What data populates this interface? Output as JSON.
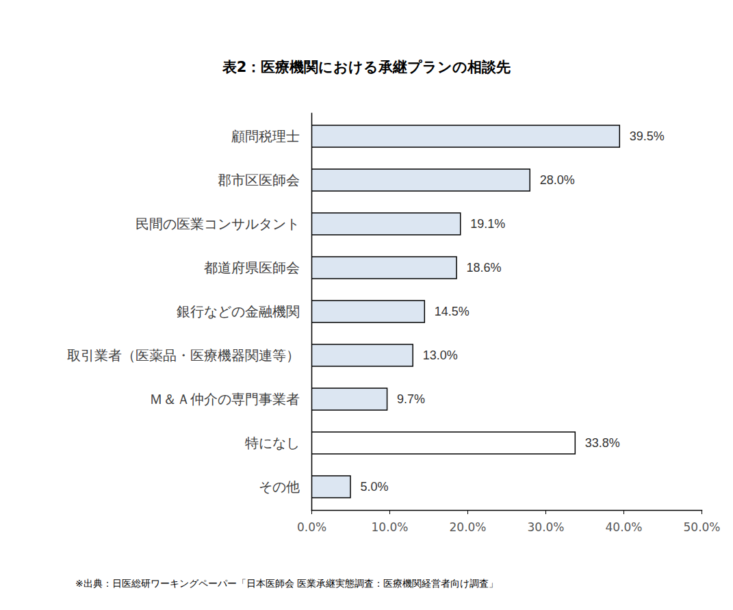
{
  "chart_data": {
    "type": "bar",
    "orientation": "horizontal",
    "title": "表2：医療機関における承継プランの相談先",
    "source": "※出典：日医総研ワーキングペーパー「日本医師会 医業承継実態調査：医療機関経営者向け調査」",
    "categories": [
      "顧問税理士",
      "郡市区医師会",
      "民間の医業コンサルタント",
      "都道府県医師会",
      "銀行などの金融機関",
      "取引業者（医薬品・医療機器関連等）",
      "Ｍ＆Ａ仲介の専門事業者",
      "特になし",
      "その他"
    ],
    "values": [
      39.5,
      28.0,
      19.1,
      18.6,
      14.5,
      13.0,
      9.7,
      33.8,
      5.0
    ],
    "value_labels": [
      "39.5%",
      "28.0%",
      "19.1%",
      "18.6%",
      "14.5%",
      "13.0%",
      "9.7%",
      "33.8%",
      "5.0%"
    ],
    "data_labels": true,
    "colors": [
      "#dce6f2",
      "#dce6f2",
      "#dce6f2",
      "#dce6f2",
      "#dce6f2",
      "#dce6f2",
      "#dce6f2",
      "#ffffff",
      "#dce6f2"
    ],
    "xlim": [
      0,
      50
    ],
    "xticks": [
      {
        "value": 0,
        "label": "0.0%"
      },
      {
        "value": 10,
        "label": "10.0%"
      },
      {
        "value": 20,
        "label": "20.0%"
      },
      {
        "value": 30,
        "label": "30.0%"
      },
      {
        "value": 40,
        "label": "40.0%"
      },
      {
        "value": 50,
        "label": "50.0%"
      }
    ],
    "grid": false
  }
}
